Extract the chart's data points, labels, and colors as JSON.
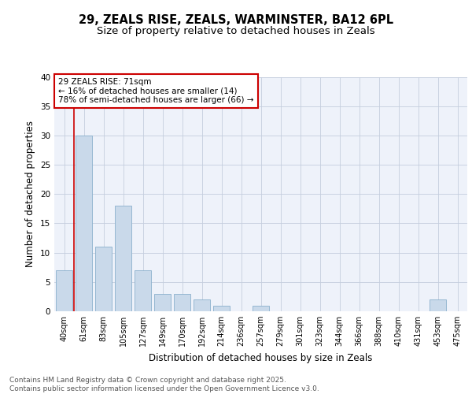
{
  "title_line1": "29, ZEALS RISE, ZEALS, WARMINSTER, BA12 6PL",
  "title_line2": "Size of property relative to detached houses in Zeals",
  "xlabel": "Distribution of detached houses by size in Zeals",
  "ylabel": "Number of detached properties",
  "categories": [
    "40sqm",
    "61sqm",
    "83sqm",
    "105sqm",
    "127sqm",
    "149sqm",
    "170sqm",
    "192sqm",
    "214sqm",
    "236sqm",
    "257sqm",
    "279sqm",
    "301sqm",
    "323sqm",
    "344sqm",
    "366sqm",
    "388sqm",
    "410sqm",
    "431sqm",
    "453sqm",
    "475sqm"
  ],
  "values": [
    7,
    30,
    11,
    18,
    7,
    3,
    3,
    2,
    1,
    0,
    1,
    0,
    0,
    0,
    0,
    0,
    0,
    0,
    0,
    2,
    0
  ],
  "bar_color": "#c9d9ea",
  "bar_edge_color": "#8ab0cc",
  "bg_color": "#eef2fa",
  "grid_color": "#c5cede",
  "annotation_text_line1": "29 ZEALS RISE: 71sqm",
  "annotation_text_line2": "← 16% of detached houses are smaller (14)",
  "annotation_text_line3": "78% of semi-detached houses are larger (66) →",
  "annotation_box_color": "#ffffff",
  "annotation_box_edge": "#cc0000",
  "vline_color": "#cc0000",
  "vline_x_index": 1,
  "ylim": [
    0,
    40
  ],
  "yticks": [
    0,
    5,
    10,
    15,
    20,
    25,
    30,
    35,
    40
  ],
  "footer_line1": "Contains HM Land Registry data © Crown copyright and database right 2025.",
  "footer_line2": "Contains public sector information licensed under the Open Government Licence v3.0.",
  "title_fontsize": 10.5,
  "subtitle_fontsize": 9.5,
  "axis_label_fontsize": 8.5,
  "tick_fontsize": 7,
  "annotation_fontsize": 7.5,
  "footer_fontsize": 6.5
}
